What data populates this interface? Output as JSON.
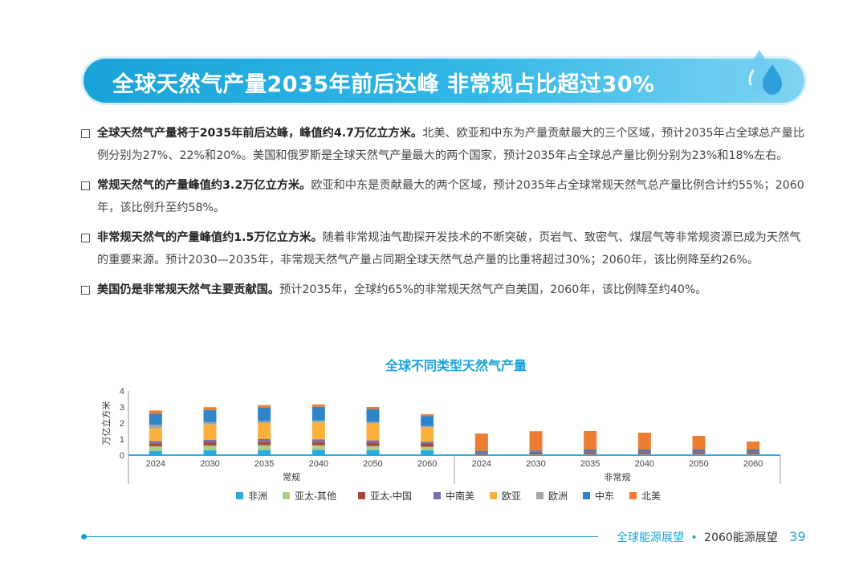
{
  "header": {
    "title": "全球天然气产量2035年前后达峰  非常规占比超过30%"
  },
  "bullets": [
    {
      "bold": "全球天然气产量将于2035年前后达峰，峰值约4.7万亿立方米。",
      "text": "北美、欧亚和中东为产量贡献最大的三个区域，预计2035年占全球总产量比例分别为27%、22%和20%。美国和俄罗斯是全球天然气产量最大的两个国家，预计2035年占全球总产量比例分别为23%和18%左右。"
    },
    {
      "bold": "常规天然气的产量峰值约3.2万亿立方米。",
      "text": "欧亚和中东是贡献最大的两个区域，预计2035年占全球常规天然气总产量比例合计约55%；2060年，该比例升至约58%。"
    },
    {
      "bold": "非常规天然气的产量峰值约1.5万亿立方米。",
      "text": "随着非常规油气勘探开发技术的不断突破，页岩气、致密气、煤层气等非常规资源已成为天然气的重要来源。预计2030—2035年，非常规天然气产量占同期全球天然气总产量的比重将超过30%；2060年，该比例降至约26%。"
    },
    {
      "bold": "美国仍是非常规天然气主要贡献国。",
      "text": "预计2035年，全球约65%的非常规天然气产自美国，2060年，该比例降至约40%。"
    }
  ],
  "chart_data": {
    "type": "bar",
    "stacked": true,
    "title": "全球不同类型天然气产量",
    "ylabel": "万亿立方米",
    "ylim": [
      0,
      4
    ],
    "yticks": [
      0,
      1,
      2,
      3,
      4
    ],
    "groups": [
      {
        "label": "常规",
        "categories": [
          "2024",
          "2030",
          "2035",
          "2040",
          "2050",
          "2060"
        ]
      },
      {
        "label": "非常规",
        "categories": [
          "2024",
          "2030",
          "2035",
          "2040",
          "2050",
          "2060"
        ]
      }
    ],
    "legend_position": "bottom",
    "series": [
      {
        "name": "非洲",
        "color": "#29abe2",
        "values": [
          0.25,
          0.3,
          0.32,
          0.33,
          0.32,
          0.3,
          0.02,
          0.02,
          0.03,
          0.03,
          0.03,
          0.03
        ]
      },
      {
        "name": "亚太-其他",
        "color": "#a9d18e",
        "values": [
          0.3,
          0.3,
          0.3,
          0.28,
          0.25,
          0.22,
          0.02,
          0.03,
          0.03,
          0.03,
          0.03,
          0.03
        ]
      },
      {
        "name": "亚太-中国",
        "color": "#a64d3a",
        "values": [
          0.18,
          0.2,
          0.22,
          0.22,
          0.2,
          0.18,
          0.08,
          0.1,
          0.12,
          0.12,
          0.12,
          0.12
        ]
      },
      {
        "name": "中南美",
        "color": "#7e6bb3",
        "values": [
          0.15,
          0.16,
          0.16,
          0.16,
          0.15,
          0.13,
          0.05,
          0.06,
          0.07,
          0.07,
          0.07,
          0.07
        ]
      },
      {
        "name": "欧亚",
        "color": "#fbb03b",
        "values": [
          0.8,
          0.95,
          1.0,
          1.05,
          1.05,
          0.9,
          0.0,
          0.0,
          0.0,
          0.0,
          0.0,
          0.0
        ]
      },
      {
        "name": "欧洲",
        "color": "#a6a6a6",
        "values": [
          0.2,
          0.15,
          0.12,
          0.12,
          0.1,
          0.08,
          0.0,
          0.0,
          0.0,
          0.0,
          0.0,
          0.0
        ]
      },
      {
        "name": "中东",
        "color": "#2e86c8",
        "values": [
          0.7,
          0.75,
          0.85,
          0.85,
          0.8,
          0.62,
          0.08,
          0.08,
          0.1,
          0.1,
          0.1,
          0.1
        ]
      },
      {
        "name": "北美",
        "color": "#ed7d31",
        "values": [
          0.2,
          0.18,
          0.15,
          0.15,
          0.13,
          0.12,
          1.1,
          1.2,
          1.15,
          1.05,
          0.85,
          0.5
        ]
      }
    ]
  },
  "footer": {
    "title1": "全球能源展望",
    "separator": "•",
    "title2": "2060能源展望",
    "page": "39"
  }
}
